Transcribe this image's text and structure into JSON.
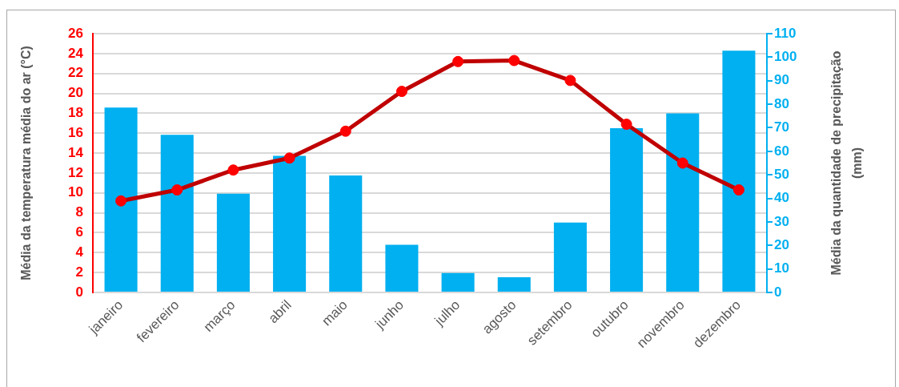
{
  "chart_data": {
    "type": "bar",
    "categories": [
      "janeiro",
      "fevereiro",
      "março",
      "abril",
      "maio",
      "junho",
      "julho",
      "agosto",
      "setembro",
      "outubro",
      "novembro",
      "dezembro"
    ],
    "series": [
      {
        "axis": "y2",
        "color": "#00b0f0",
        "values": [
          78.6,
          67.0,
          42.0,
          58.1,
          49.7,
          20.3,
          8.3,
          6.5,
          29.7,
          69.8,
          76.1,
          102.8
        ]
      },
      {
        "type": "line",
        "axis": "y",
        "color": "#c00000",
        "colors": [
          "#ff0000",
          "#ff0000",
          "#ff0000",
          "#ff0000",
          "#ff0000",
          "#ff0000",
          "#ff0000",
          "#ff0000",
          "#ff0000",
          "#ff0000",
          "#ff0000",
          "#ff0000"
        ],
        "values": [
          9.2,
          10.3,
          12.3,
          13.5,
          16.2,
          20.2,
          23.2,
          23.3,
          21.3,
          16.9,
          13.0,
          10.3
        ]
      }
    ],
    "ylabel": "Média da temperatura média do ar (°C)",
    "y2label": "Média da quantidade de precipitação (mm)",
    "ylim": [
      0,
      26
    ],
    "yticks": [
      0,
      2,
      4,
      6,
      8,
      10,
      12,
      14,
      16,
      18,
      20,
      22,
      24,
      26
    ],
    "y2lim": [
      0,
      110
    ],
    "y2ticks": [
      0,
      10,
      20,
      30,
      40,
      50,
      60,
      70,
      80,
      90,
      100,
      110
    ],
    "grid": "y",
    "marker": "circle"
  }
}
